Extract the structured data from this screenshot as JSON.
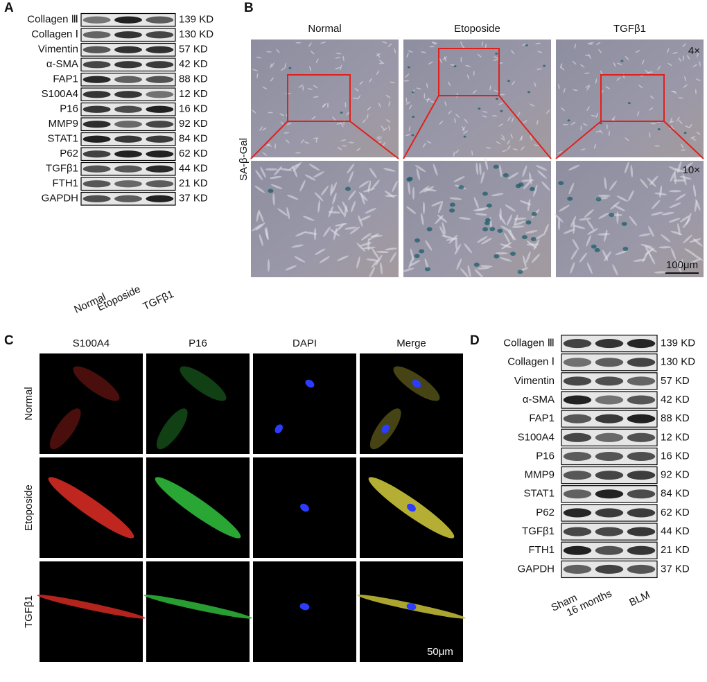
{
  "panel_a": {
    "label": "A",
    "rows": [
      {
        "protein": "Collagen Ⅲ",
        "size": "139 KD"
      },
      {
        "protein": "Collagen Ⅰ",
        "size": "130 KD"
      },
      {
        "protein": "Vimentin",
        "size": "57 KD"
      },
      {
        "protein": "α-SMA",
        "size": "42 KD"
      },
      {
        "protein": "FAP1",
        "size": "88 KD"
      },
      {
        "protein": "S100A4",
        "size": "12 KD"
      },
      {
        "protein": "P16",
        "size": "16 KD"
      },
      {
        "protein": "MMP9",
        "size": "92 KD"
      },
      {
        "protein": "STAT1",
        "size": "84 KD"
      },
      {
        "protein": "P62",
        "size": "62 KD"
      },
      {
        "protein": "TGFβ1",
        "size": "44 KD"
      },
      {
        "protein": "FTH1",
        "size": "21 KD"
      },
      {
        "protein": "GAPDH",
        "size": "37 KD"
      }
    ],
    "lanes": [
      "Normal",
      "Etoposide",
      "TGFβ1"
    ]
  },
  "panel_b": {
    "label": "B",
    "columns": [
      "Normal",
      "Etoposide",
      "TGFβ1"
    ],
    "row_label": "SA-β-Gal",
    "magnifications": [
      "4×",
      "10×"
    ],
    "scale_bar": "100μm"
  },
  "panel_c": {
    "label": "C",
    "columns": [
      "S100A4",
      "P16",
      "DAPI",
      "Merge"
    ],
    "rows": [
      "Normal",
      "Etoposide",
      "TGFβ1"
    ],
    "scale_bar": "50μm"
  },
  "panel_d": {
    "label": "D",
    "rows": [
      {
        "protein": "Collagen Ⅲ",
        "size": "139 KD"
      },
      {
        "protein": "Collagen Ⅰ",
        "size": "130 KD"
      },
      {
        "protein": "Vimentin",
        "size": "57 KD"
      },
      {
        "protein": "α-SMA",
        "size": "42 KD"
      },
      {
        "protein": "FAP1",
        "size": "88 KD"
      },
      {
        "protein": "S100A4",
        "size": "12 KD"
      },
      {
        "protein": "P16",
        "size": "16 KD"
      },
      {
        "protein": "MMP9",
        "size": "92 KD"
      },
      {
        "protein": "STAT1",
        "size": "84 KD"
      },
      {
        "protein": "P62",
        "size": "62 KD"
      },
      {
        "protein": "TGFβ1",
        "size": "44 KD"
      },
      {
        "protein": "FTH1",
        "size": "21 KD"
      },
      {
        "protein": "GAPDH",
        "size": "37 KD"
      }
    ],
    "lanes": [
      "Sham",
      "16 months",
      "BLM"
    ]
  }
}
